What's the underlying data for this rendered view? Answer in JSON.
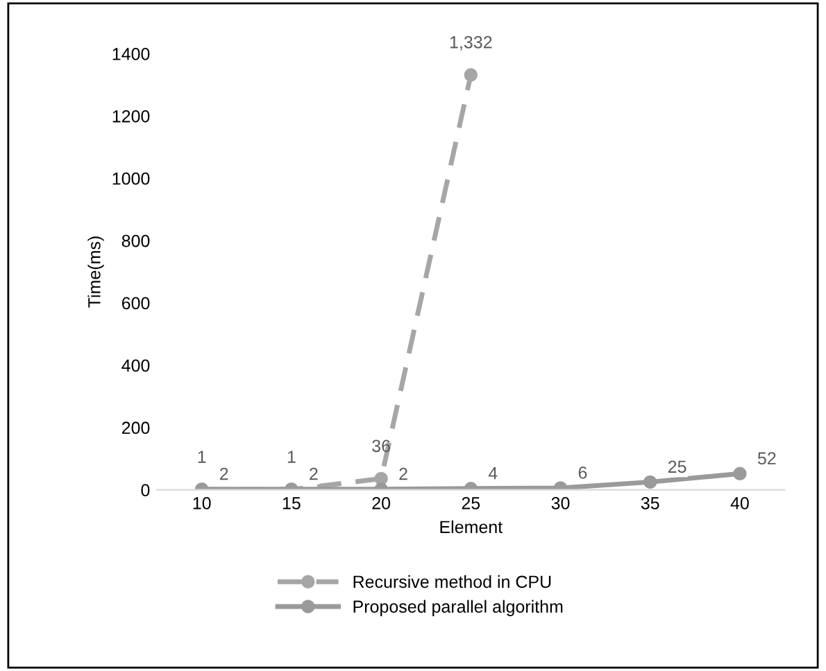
{
  "chart_data": {
    "type": "line",
    "xlabel": "Element",
    "ylabel": "Time(ms)",
    "categories": [
      "10",
      "15",
      "20",
      "25",
      "30",
      "35",
      "40"
    ],
    "series": [
      {
        "name": "Recursive method in CPU",
        "color": "#a6a6a6",
        "line_style": "dashed",
        "values": [
          1,
          1,
          36,
          1332,
          null,
          null,
          null
        ],
        "value_labels": [
          "1",
          "1",
          "36",
          "1,332",
          null,
          null,
          null
        ]
      },
      {
        "name": "Proposed parallel algorithm",
        "color": "#9a9a9a",
        "line_style": "solid",
        "values": [
          2,
          2,
          2,
          4,
          6,
          25,
          52
        ],
        "value_labels": [
          "2",
          "2",
          "2",
          "4",
          "6",
          "25",
          "52"
        ]
      }
    ],
    "ylim": [
      0,
      1400
    ],
    "yticks": [
      0,
      200,
      400,
      600,
      800,
      1000,
      1200,
      1400
    ],
    "marker": "circle",
    "grid": false,
    "legend": "bottom"
  }
}
